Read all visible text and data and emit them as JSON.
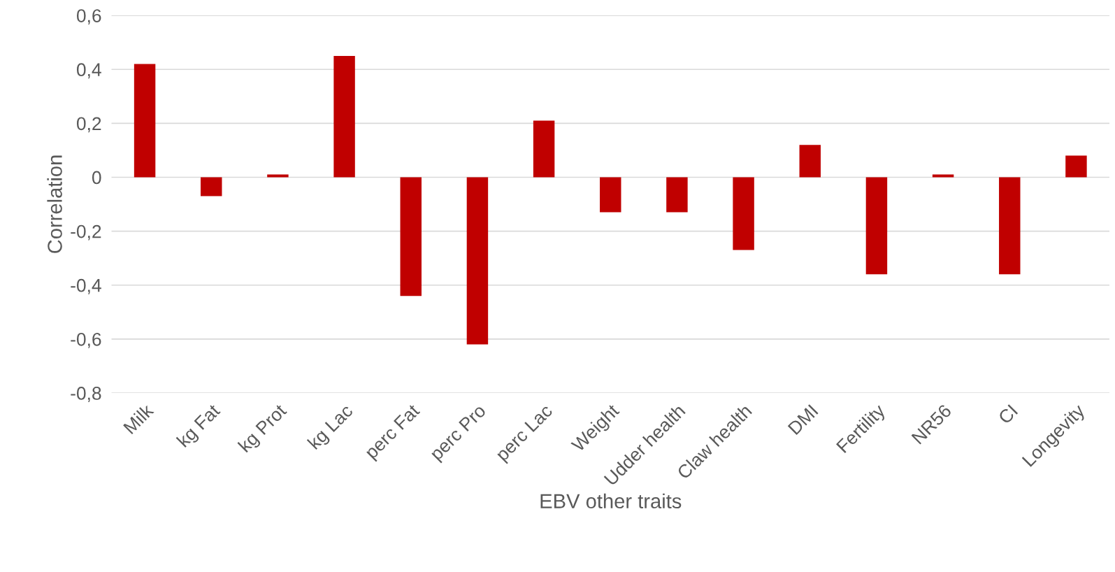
{
  "chart_data": {
    "type": "bar",
    "xlabel": "EBV other traits",
    "ylabel": "Correlation",
    "categories": [
      "Milk",
      "kg Fat",
      "kg Prot",
      "kg Lac",
      "perc Fat",
      "perc Pro",
      "perc Lac",
      "Weight",
      "Udder health",
      "Claw health",
      "DMI",
      "Fertility",
      "NR56",
      "CI",
      "Longevity"
    ],
    "values": [
      0.42,
      -0.07,
      0.01,
      0.45,
      -0.44,
      -0.62,
      0.21,
      -0.13,
      -0.13,
      -0.27,
      0.12,
      -0.36,
      0.01,
      -0.36,
      0.08
    ],
    "color": "#c00000",
    "ylim": [
      -0.8,
      0.6
    ],
    "yticks": [
      {
        "value": -0.8,
        "label": "-0,8"
      },
      {
        "value": -0.6,
        "label": "-0,6"
      },
      {
        "value": -0.4,
        "label": "-0,4"
      },
      {
        "value": -0.2,
        "label": "-0,2"
      },
      0,
      {
        "value": 0.2,
        "label": "0,2"
      },
      {
        "value": 0.4,
        "label": "0,4"
      },
      {
        "value": 0.6,
        "label": "0,6"
      }
    ],
    "grid": "y",
    "legend": false
  }
}
